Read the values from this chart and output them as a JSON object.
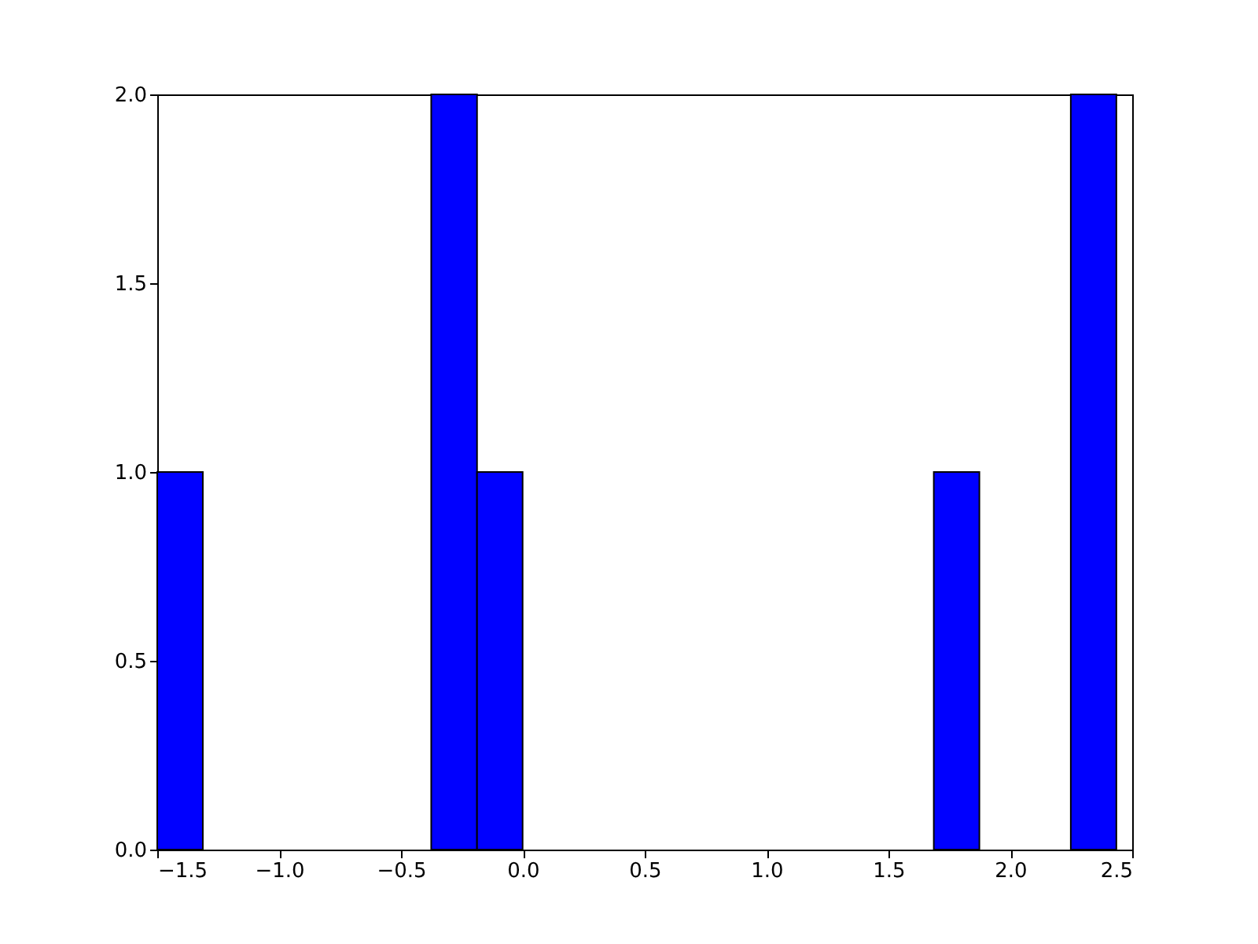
{
  "chart_data": {
    "type": "histogram",
    "bins": [
      -1.5,
      -1.313,
      -1.125,
      -0.938,
      -0.75,
      -0.563,
      -0.376,
      -0.188,
      -0.001,
      0.187,
      0.374,
      0.561,
      0.749,
      0.936,
      1.124,
      1.311,
      1.498,
      1.686,
      1.873,
      2.061,
      2.248,
      2.435
    ],
    "values": [
      1,
      0,
      0,
      0,
      0,
      0,
      2,
      1,
      0,
      0,
      0,
      0,
      0,
      0,
      0,
      0,
      0,
      1,
      0,
      0,
      2
    ],
    "color": "#0000ff",
    "xlim": [
      -1.5,
      2.5
    ],
    "xticks": [
      -1.5,
      {
        "value": -1,
        "label": "−1.0"
      },
      -0.5,
      {
        "value": 0,
        "label": "0.0"
      },
      0.5,
      {
        "value": 1,
        "label": "1.0"
      },
      1.5,
      {
        "value": 2,
        "label": "2.0"
      },
      2.5
    ],
    "ylim": [
      0,
      2
    ],
    "yticks": [
      {
        "value": 0,
        "label": "0.0"
      },
      0.5,
      {
        "value": 1,
        "label": "1.0"
      },
      1.5,
      {
        "value": 2,
        "label": "2.0"
      }
    ],
    "grid": false
  }
}
